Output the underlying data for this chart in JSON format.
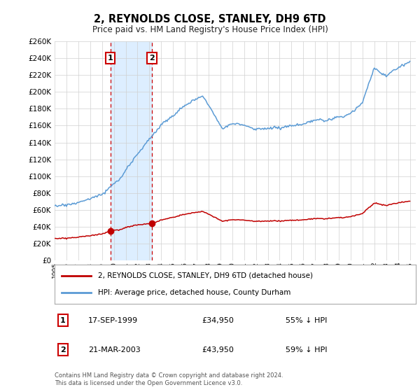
{
  "title": "2, REYNOLDS CLOSE, STANLEY, DH9 6TD",
  "subtitle": "Price paid vs. HM Land Registry's House Price Index (HPI)",
  "legend_line1": "2, REYNOLDS CLOSE, STANLEY, DH9 6TD (detached house)",
  "legend_line2": "HPI: Average price, detached house, County Durham",
  "sale1_date": "17-SEP-1999",
  "sale1_price": "£34,950",
  "sale1_hpi": "55% ↓ HPI",
  "sale2_date": "21-MAR-2003",
  "sale2_price": "£43,950",
  "sale2_hpi": "59% ↓ HPI",
  "footnote": "Contains HM Land Registry data © Crown copyright and database right 2024.\nThis data is licensed under the Open Government Licence v3.0.",
  "hpi_color": "#5b9bd5",
  "price_color": "#c00000",
  "shade_color": "#ddeeff",
  "vline_color": "#cc0000",
  "ylim": [
    0,
    260000
  ],
  "yticks": [
    0,
    20000,
    40000,
    60000,
    80000,
    100000,
    120000,
    140000,
    160000,
    180000,
    200000,
    220000,
    240000,
    260000
  ],
  "sale1_year": 1999.71,
  "sale1_value": 34950,
  "sale2_year": 2003.22,
  "sale2_value": 43950,
  "xmin": 1995,
  "xmax": 2025.5
}
